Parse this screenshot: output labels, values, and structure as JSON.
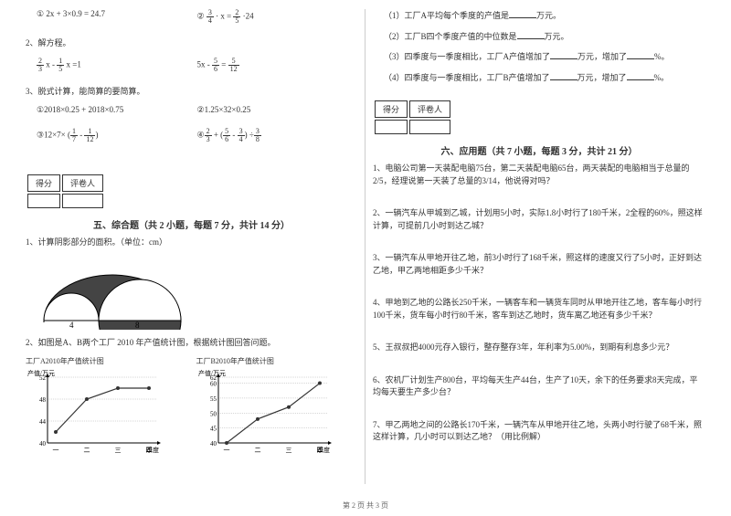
{
  "left": {
    "q1": {
      "a": "① 2x + 3×0.9 = 24.7",
      "b_pre": "②",
      "b_f1": {
        "n": "3",
        "d": "4"
      },
      "b_mid": "· x =",
      "b_f2": {
        "n": "2",
        "d": "5"
      },
      "b_end": "·24"
    },
    "q2": {
      "title": "2、解方程。",
      "a_f1": {
        "n": "2",
        "d": "3"
      },
      "a_mid": " x - ",
      "a_f2": {
        "n": "1",
        "d": "5"
      },
      "a_end": " x =1",
      "b_pre": "5x - ",
      "b_f1": {
        "n": "5",
        "d": "6"
      },
      "b_mid": " = ",
      "b_f2": {
        "n": "5",
        "d": "12"
      }
    },
    "q3": {
      "title": "3、脱式计算，能简算的要简算。",
      "a": "①2018×0.25 + 2018×0.75",
      "b": "②1.25×32×0.25",
      "c_pre": "③12×7× (",
      "c_f1": {
        "n": "1",
        "d": "7"
      },
      "c_mid": " - ",
      "c_f2": {
        "n": "1",
        "d": "12"
      },
      "c_end": ")",
      "d_pre": "④",
      "d_f1": {
        "n": "2",
        "d": "3"
      },
      "d_mid1": " + (",
      "d_f2": {
        "n": "5",
        "d": "6"
      },
      "d_mid2": " - ",
      "d_f3": {
        "n": "3",
        "d": "4"
      },
      "d_mid3": ") ÷",
      "d_f4": {
        "n": "3",
        "d": "8"
      }
    },
    "section5": {
      "title": "五、综合题（共 2 小题，每题 7 分，共计 14 分）",
      "q1": "1、计算阴影部分的面积。（单位：cm）",
      "shape": {
        "labels": [
          "4",
          "8"
        ]
      },
      "q2": "2、如图是A、B两个工厂 2010 年产值统计图，根据统计图回答问题。"
    },
    "charts": {
      "a": {
        "title": "工厂A2010年产值统计图",
        "ylabel": "产值/万元",
        "xlabel": "季度",
        "ylim": [
          40,
          52
        ],
        "ytick_step": 4,
        "yticks": [
          40,
          44,
          48,
          52
        ],
        "xticks": [
          "一",
          "二",
          "三",
          "四"
        ],
        "values": [
          42,
          48,
          50,
          50
        ],
        "line_color": "#333",
        "grid_color": "#999",
        "bg": "#fff"
      },
      "b": {
        "title": "工厂B2010年产值统计图",
        "ylabel": "产值/万元",
        "xlabel": "季度",
        "ylim": [
          40,
          62
        ],
        "ytick_step": 5,
        "yticks": [
          40,
          45,
          50,
          55,
          60,
          62
        ],
        "xticks": [
          "一",
          "二",
          "三",
          "四"
        ],
        "values": [
          40,
          48,
          52,
          60
        ],
        "line_color": "#333",
        "grid_color": "#999",
        "bg": "#fff"
      }
    }
  },
  "right": {
    "sub": {
      "l1_pre": "（1）工厂A平均每个季度的产值是",
      "l1_suf": "万元。",
      "l2_pre": "（2）工厂B四个季度产值的中位数是",
      "l2_suf": "万元。",
      "l3_pre": "（3）四季度与一季度相比，工厂A产值增加了",
      "l3_mid": "万元，增加了",
      "l3_suf": "%。",
      "l4_pre": "（4）四季度与一季度相比，工厂B产值增加了",
      "l4_mid": "万元，增加了",
      "l4_suf": "%。"
    },
    "section6": {
      "title": "六、应用题（共 7 小题，每题 3 分，共计 21 分）"
    },
    "apps": {
      "1": "1、电脑公司第一天装配电脑75台，第二天装配电脑65台，两天装配的电脑相当于总量的2/5，经理说第一天装了总量的3/14，他说得对吗？",
      "2": "2、一辆汽车从甲城到乙城，计划用5小时，实际1.8小时行了180千米，2全程的60%，照这样计算，可提前几小时到达乙城？",
      "3": "3、一辆汽车从甲地开往乙地，前3小时行了168千米，照这样的速度又行了5小时，正好到达乙地，甲乙两地相距多少千米？",
      "4": "4、甲地到乙地的公路长250千米，一辆客车和一辆货车同时从甲地开往乙地，客车每小时行100千米，货车每小时行80千米，客车到达乙地时，货车离乙地还有多少千米？",
      "5": "5、王叔叔把4000元存入银行，整存整存3年，年利率为5.00%，到期有利息多少元？",
      "6": "6、农机厂计划生产800台，平均每天生产44台，生产了10天，余下的任务要求8天完成，平均每天要生产多少台？",
      "7": "7、甲乙两地之间的公路长170千米，一辆汽车从甲地开往乙地，头两小时行驶了68千米，照这样计算，几小时可以到达乙地？（用比例解）"
    }
  },
  "score_labels": {
    "a": "得分",
    "b": "评卷人"
  },
  "footer": "第 2 页 共 3 页"
}
